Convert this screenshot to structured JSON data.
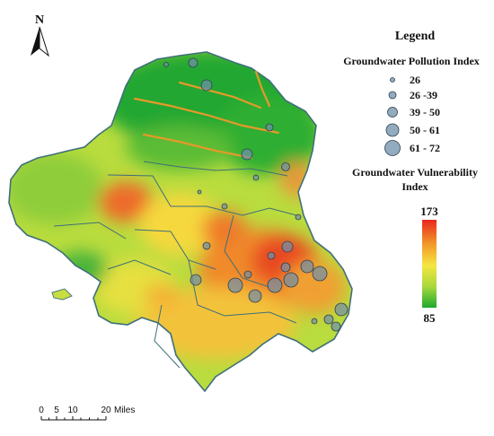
{
  "north_arrow": {
    "label": "N"
  },
  "legend": {
    "title": "Legend",
    "pollution": {
      "heading": "Groundwater Pollution Index",
      "classes": [
        "26",
        "26 -39",
        "39 - 50",
        "50 - 61",
        "61 - 72"
      ],
      "symbol_color": "#6f8faa"
    },
    "vulnerability": {
      "heading_line1": "Groundwater Vulnerability",
      "heading_line2": "Index",
      "max_label": "173",
      "min_label": "85",
      "gradient": [
        "#e8281e",
        "#f29a2a",
        "#f5e642",
        "#a8d83c",
        "#1fa82e"
      ]
    }
  },
  "scale_bar": {
    "ticks": [
      "0",
      "5",
      "10",
      "20"
    ],
    "unit": "Miles"
  }
}
